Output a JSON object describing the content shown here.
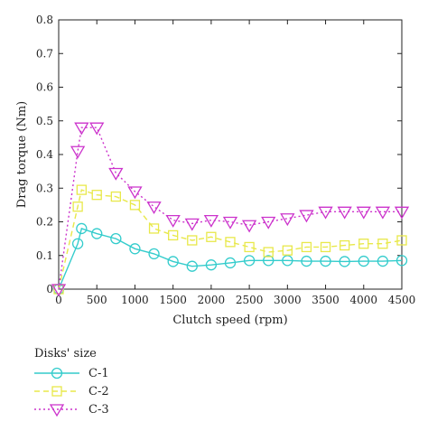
{
  "chart_data": {
    "type": "line",
    "xlabel": "Clutch speed (rpm)",
    "ylabel": "Drag torque (Nm)",
    "xlim": [
      0,
      4500
    ],
    "ylim": [
      0,
      0.8
    ],
    "xticks": [
      "0",
      "500",
      "1000",
      "1500",
      "2000",
      "2500",
      "3000",
      "3500",
      "4000",
      "4500"
    ],
    "yticks": [
      "0",
      "0.1",
      "0.2",
      "0.3",
      "0.4",
      "0.5",
      "0.6",
      "0.7",
      "0.8"
    ],
    "grid": false,
    "legend_title": "Disks' size",
    "legend_position": "below",
    "x": [
      0,
      250,
      300,
      500,
      750,
      1000,
      1250,
      1500,
      1750,
      2000,
      2250,
      2500,
      2750,
      3000,
      3250,
      3500,
      3750,
      4000,
      4250,
      4500
    ],
    "series": [
      {
        "name": "C-1",
        "color": "#33cccc",
        "marker": "circle",
        "line": "solid",
        "values": [
          0,
          0.135,
          0.18,
          0.165,
          0.15,
          0.12,
          0.105,
          0.082,
          0.068,
          0.072,
          0.078,
          0.085,
          0.085,
          0.085,
          0.083,
          0.083,
          0.082,
          0.083,
          0.083,
          0.085
        ]
      },
      {
        "name": "C-2",
        "color": "#e8e84a",
        "marker": "square",
        "line": "dashed",
        "values": [
          0,
          0.245,
          0.295,
          0.28,
          0.275,
          0.25,
          0.18,
          0.16,
          0.145,
          0.155,
          0.14,
          0.125,
          0.11,
          0.115,
          0.125,
          0.125,
          0.13,
          0.135,
          0.135,
          0.145
        ]
      },
      {
        "name": "C-3",
        "color": "#cc33cc",
        "marker": "triangle-down",
        "line": "dotted",
        "values": [
          0,
          0.41,
          0.48,
          0.48,
          0.345,
          0.29,
          0.245,
          0.205,
          0.195,
          0.205,
          0.2,
          0.19,
          0.2,
          0.21,
          0.22,
          0.23,
          0.23,
          0.23,
          0.23,
          0.23
        ]
      }
    ]
  }
}
